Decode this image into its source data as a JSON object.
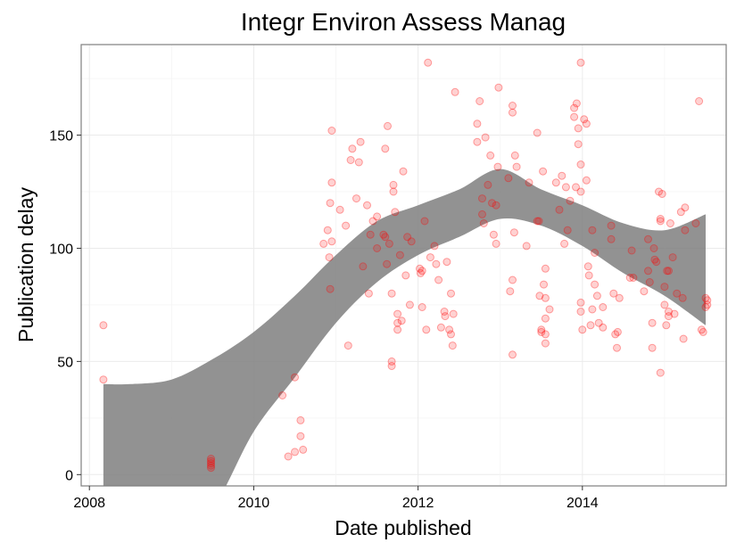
{
  "chart_data": {
    "type": "scatter",
    "title": "Integr Environ Assess Manag",
    "xlabel": "Date published",
    "ylabel": "Publication delay",
    "xlim": [
      2007.9,
      2015.75
    ],
    "ylim": [
      -5,
      190
    ],
    "x_ticks": [
      2008,
      2010,
      2012,
      2014
    ],
    "x_tick_labels": [
      "2008",
      "2010",
      "2012",
      "2014"
    ],
    "y_ticks": [
      0,
      50,
      100,
      150
    ],
    "y_tick_labels": [
      "0",
      "50",
      "100",
      "150"
    ],
    "grid": true,
    "point_color": "#ff0000",
    "ribbon_color": "#7f7f7f",
    "points": [
      [
        2008.17,
        66
      ],
      [
        2008.17,
        42
      ],
      [
        2009.48,
        7
      ],
      [
        2009.48,
        5
      ],
      [
        2009.48,
        4
      ],
      [
        2009.48,
        3
      ],
      [
        2009.48,
        6
      ],
      [
        2010.35,
        35
      ],
      [
        2010.42,
        8
      ],
      [
        2010.5,
        43
      ],
      [
        2010.5,
        10
      ],
      [
        2010.57,
        24
      ],
      [
        2010.57,
        17
      ],
      [
        2010.6,
        11
      ],
      [
        2010.85,
        102
      ],
      [
        2010.9,
        108
      ],
      [
        2010.92,
        96
      ],
      [
        2010.93,
        82
      ],
      [
        2010.95,
        103
      ],
      [
        2010.93,
        120
      ],
      [
        2010.95,
        129
      ],
      [
        2010.95,
        152
      ],
      [
        2011.05,
        117
      ],
      [
        2011.12,
        110
      ],
      [
        2011.15,
        57
      ],
      [
        2011.18,
        139
      ],
      [
        2011.2,
        144
      ],
      [
        2011.25,
        122
      ],
      [
        2011.28,
        138
      ],
      [
        2011.3,
        147
      ],
      [
        2011.33,
        92
      ],
      [
        2011.38,
        119
      ],
      [
        2011.4,
        80
      ],
      [
        2011.42,
        106
      ],
      [
        2011.45,
        112
      ],
      [
        2011.5,
        100
      ],
      [
        2011.5,
        114
      ],
      [
        2011.58,
        106
      ],
      [
        2011.6,
        105
      ],
      [
        2011.62,
        93
      ],
      [
        2011.6,
        144
      ],
      [
        2011.63,
        154
      ],
      [
        2011.65,
        102
      ],
      [
        2011.68,
        80
      ],
      [
        2011.68,
        50
      ],
      [
        2011.68,
        48
      ],
      [
        2011.7,
        125
      ],
      [
        2011.7,
        128
      ],
      [
        2011.72,
        116
      ],
      [
        2011.75,
        71
      ],
      [
        2011.75,
        67
      ],
      [
        2011.75,
        64
      ],
      [
        2011.78,
        97
      ],
      [
        2011.8,
        68
      ],
      [
        2011.82,
        134
      ],
      [
        2011.85,
        88
      ],
      [
        2011.87,
        105
      ],
      [
        2011.9,
        75
      ],
      [
        2011.92,
        103
      ],
      [
        2012.02,
        91
      ],
      [
        2012.03,
        89
      ],
      [
        2012.05,
        90
      ],
      [
        2012.05,
        74
      ],
      [
        2012.08,
        112
      ],
      [
        2012.1,
        64
      ],
      [
        2012.12,
        182
      ],
      [
        2012.15,
        96
      ],
      [
        2012.2,
        101
      ],
      [
        2012.22,
        93
      ],
      [
        2012.25,
        86
      ],
      [
        2012.28,
        65
      ],
      [
        2012.32,
        72
      ],
      [
        2012.33,
        70
      ],
      [
        2012.35,
        94
      ],
      [
        2012.38,
        64
      ],
      [
        2012.4,
        80
      ],
      [
        2012.4,
        62
      ],
      [
        2012.42,
        57
      ],
      [
        2012.43,
        71
      ],
      [
        2012.45,
        169
      ],
      [
        2012.72,
        147
      ],
      [
        2012.72,
        155
      ],
      [
        2012.75,
        165
      ],
      [
        2012.78,
        122
      ],
      [
        2012.78,
        115
      ],
      [
        2012.8,
        111
      ],
      [
        2012.82,
        149
      ],
      [
        2012.85,
        128
      ],
      [
        2012.88,
        141
      ],
      [
        2012.9,
        120
      ],
      [
        2012.92,
        106
      ],
      [
        2012.95,
        119
      ],
      [
        2012.97,
        136
      ],
      [
        2012.98,
        171
      ],
      [
        2012.95,
        102
      ],
      [
        2013.1,
        131
      ],
      [
        2013.12,
        81
      ],
      [
        2013.15,
        86
      ],
      [
        2013.15,
        160
      ],
      [
        2013.15,
        163
      ],
      [
        2013.18,
        141
      ],
      [
        2013.2,
        136
      ],
      [
        2013.15,
        53
      ],
      [
        2013.17,
        107
      ],
      [
        2013.32,
        101
      ],
      [
        2013.35,
        129
      ],
      [
        2013.45,
        151
      ],
      [
        2013.45,
        112
      ],
      [
        2013.47,
        112
      ],
      [
        2013.48,
        79
      ],
      [
        2013.5,
        64
      ],
      [
        2013.5,
        63
      ],
      [
        2013.52,
        134
      ],
      [
        2013.53,
        84
      ],
      [
        2013.55,
        91
      ],
      [
        2013.55,
        78
      ],
      [
        2013.55,
        69
      ],
      [
        2013.55,
        58
      ],
      [
        2013.55,
        62
      ],
      [
        2013.6,
        73
      ],
      [
        2013.68,
        129
      ],
      [
        2013.72,
        117
      ],
      [
        2013.75,
        132
      ],
      [
        2013.78,
        102
      ],
      [
        2013.8,
        127
      ],
      [
        2013.82,
        108
      ],
      [
        2013.85,
        121
      ],
      [
        2013.9,
        158
      ],
      [
        2013.9,
        162
      ],
      [
        2013.93,
        164
      ],
      [
        2013.92,
        127
      ],
      [
        2013.95,
        153
      ],
      [
        2013.95,
        146
      ],
      [
        2013.98,
        137
      ],
      [
        2013.98,
        125
      ],
      [
        2013.98,
        182
      ],
      [
        2013.98,
        76
      ],
      [
        2013.98,
        72
      ],
      [
        2014.0,
        64
      ],
      [
        2014.02,
        157
      ],
      [
        2014.05,
        155
      ],
      [
        2014.05,
        130
      ],
      [
        2014.07,
        92
      ],
      [
        2014.08,
        88
      ],
      [
        2014.1,
        66
      ],
      [
        2014.12,
        108
      ],
      [
        2014.12,
        73
      ],
      [
        2014.15,
        98
      ],
      [
        2014.15,
        84
      ],
      [
        2014.18,
        79
      ],
      [
        2014.2,
        67
      ],
      [
        2014.25,
        65
      ],
      [
        2014.25,
        74
      ],
      [
        2014.35,
        104
      ],
      [
        2014.35,
        110
      ],
      [
        2014.38,
        80
      ],
      [
        2014.4,
        62
      ],
      [
        2014.42,
        56
      ],
      [
        2014.43,
        63
      ],
      [
        2014.45,
        78
      ],
      [
        2014.58,
        87
      ],
      [
        2014.6,
        99
      ],
      [
        2014.62,
        87
      ],
      [
        2014.75,
        81
      ],
      [
        2014.8,
        104
      ],
      [
        2014.8,
        90
      ],
      [
        2014.82,
        85
      ],
      [
        2014.85,
        67
      ],
      [
        2014.85,
        56
      ],
      [
        2014.87,
        100
      ],
      [
        2014.88,
        95
      ],
      [
        2014.9,
        94
      ],
      [
        2014.93,
        125
      ],
      [
        2014.95,
        112
      ],
      [
        2014.95,
        113
      ],
      [
        2014.95,
        45
      ],
      [
        2014.97,
        124
      ],
      [
        2015.0,
        83
      ],
      [
        2015.0,
        75
      ],
      [
        2015.02,
        66
      ],
      [
        2015.03,
        90
      ],
      [
        2015.05,
        70
      ],
      [
        2015.05,
        72
      ],
      [
        2015.05,
        90
      ],
      [
        2015.07,
        111
      ],
      [
        2015.1,
        96
      ],
      [
        2015.12,
        71
      ],
      [
        2015.15,
        80
      ],
      [
        2015.2,
        116
      ],
      [
        2015.22,
        78
      ],
      [
        2015.23,
        60
      ],
      [
        2015.25,
        118
      ],
      [
        2015.25,
        108
      ],
      [
        2015.38,
        111
      ],
      [
        2015.42,
        165
      ],
      [
        2015.45,
        64
      ],
      [
        2015.47,
        63
      ],
      [
        2015.5,
        78
      ],
      [
        2015.5,
        74
      ],
      [
        2015.52,
        77
      ],
      [
        2015.52,
        75
      ]
    ],
    "ribbon": {
      "x": [
        2008.17,
        2008.5,
        2009.0,
        2009.5,
        2010.0,
        2010.5,
        2011.0,
        2011.5,
        2012.0,
        2012.5,
        2013.0,
        2013.5,
        2014.0,
        2014.5,
        2015.0,
        2015.5
      ],
      "upper": [
        40,
        40,
        42,
        51,
        63,
        79,
        97,
        112,
        119,
        126,
        135,
        126,
        119,
        111,
        108,
        115
      ],
      "lower": [
        -30,
        -30,
        -30,
        -15,
        19,
        43,
        67,
        85,
        97,
        105,
        113,
        110,
        101,
        89,
        79,
        66
      ]
    }
  }
}
